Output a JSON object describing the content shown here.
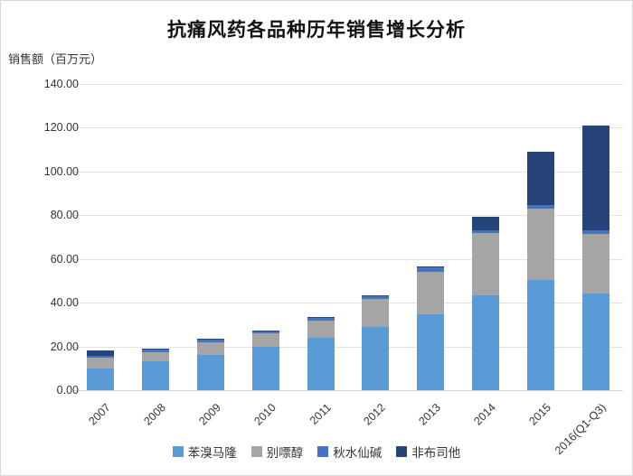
{
  "chart_data": {
    "type": "bar",
    "stacked": true,
    "title": "抗痛风药各品种历年销售增长分析",
    "y_unit_label": "销售额（百万元）",
    "categories": [
      "2007",
      "2008",
      "2009",
      "2010",
      "2011",
      "2012",
      "2013",
      "2014",
      "2015",
      "2016(Q1-Q3)"
    ],
    "series": [
      {
        "name": "苯溴马隆",
        "color": "#5B9BD5",
        "values": [
          10.0,
          13.4,
          16.1,
          19.8,
          24.0,
          28.9,
          34.5,
          43.4,
          50.3,
          44.1
        ]
      },
      {
        "name": "别嘌醇",
        "color": "#A5A5A5",
        "values": [
          4.8,
          4.1,
          5.9,
          6.4,
          7.9,
          12.8,
          19.7,
          28.5,
          32.6,
          27.3
        ]
      },
      {
        "name": "秋水仙碱",
        "color": "#4472C4",
        "values": [
          1.0,
          1.1,
          1.0,
          1.0,
          1.0,
          1.3,
          1.9,
          1.4,
          1.8,
          1.7
        ]
      },
      {
        "name": "非布司他",
        "color": "#264478",
        "values": [
          2.3,
          0.4,
          0.4,
          0.2,
          0.4,
          0.4,
          0.5,
          5.9,
          24.5,
          47.9
        ]
      }
    ],
    "ylim": [
      0,
      140
    ],
    "y_tick_step": 20,
    "y_tick_labels": [
      "0.00",
      "20.00",
      "40.00",
      "60.00",
      "80.00",
      "100.00",
      "120.00",
      "140.00"
    ],
    "xlabel": "",
    "ylabel": "销售额（百万元）",
    "grid": true,
    "legend_position": "bottom"
  }
}
